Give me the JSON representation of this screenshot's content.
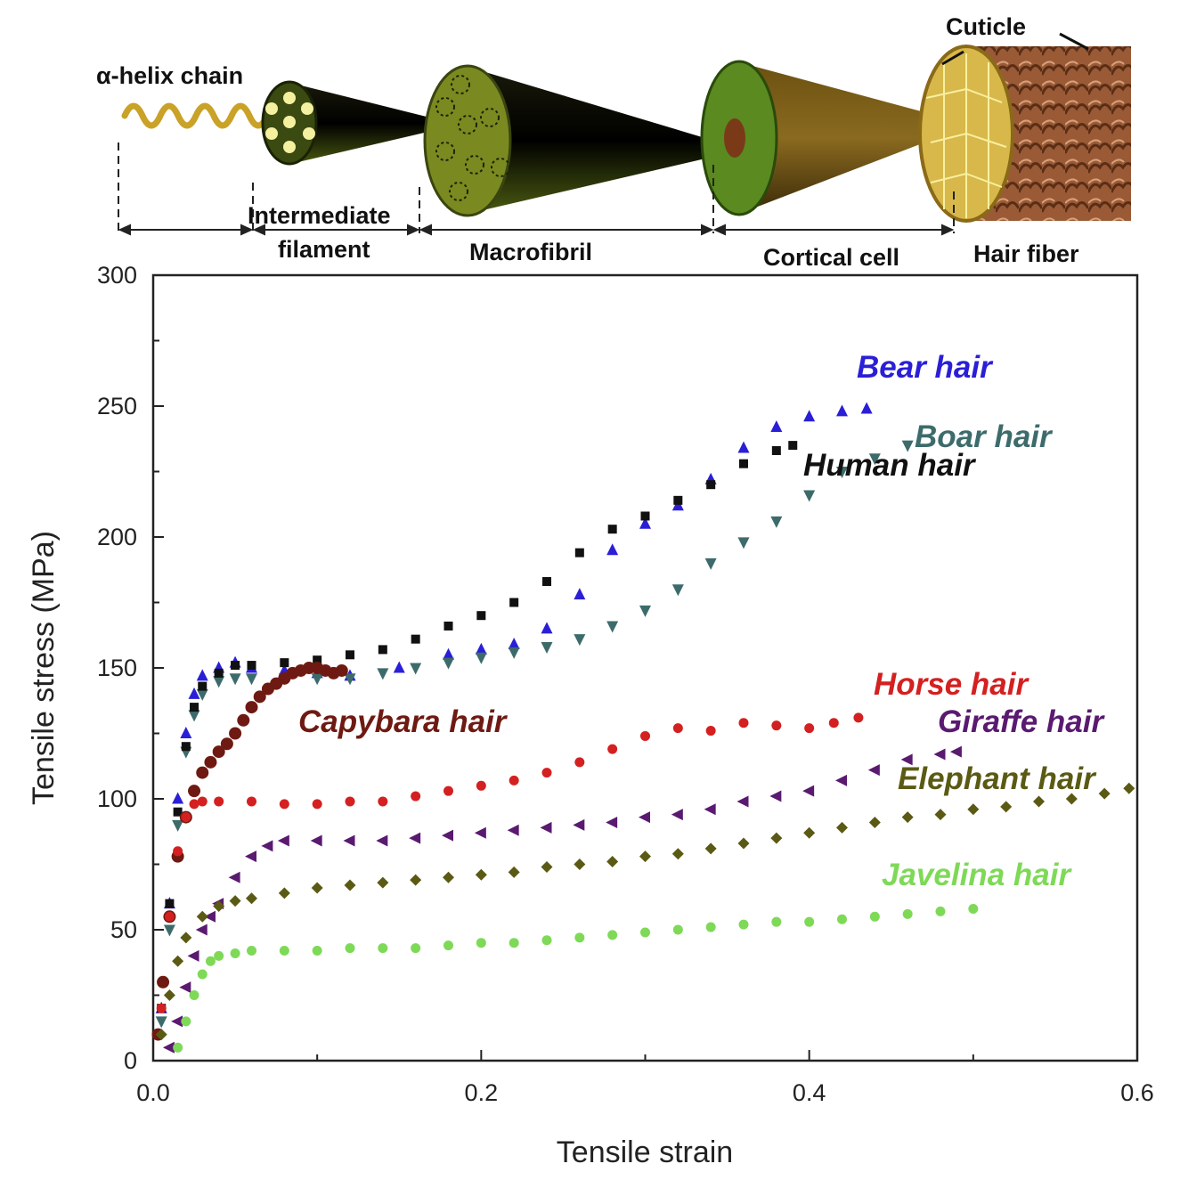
{
  "colors": {
    "bear": "#2a1fd6",
    "boar": "#3d6b6b",
    "human": "#111111",
    "capybara": "#6e1a12",
    "horse": "#d42020",
    "giraffe": "#5a1a70",
    "elephant": "#5a5a14",
    "javelina": "#7ed957"
  },
  "diagram": {
    "labels": {
      "helix": "α-helix chain",
      "intermediate_1": "Intermediate",
      "intermediate_2": "filament",
      "macrofibril": "Macrofibril",
      "cortical": "Cortical cell",
      "hair_fiber": "Hair fiber",
      "cuticle": "Cuticle"
    }
  },
  "chart_data": {
    "type": "scatter",
    "xlabel": "Tensile strain",
    "ylabel": "Tensile stress (MPa)",
    "xlim": [
      0,
      0.6
    ],
    "ylim": [
      0,
      300
    ],
    "x_ticks": [
      "0.0",
      "0.2",
      "0.4",
      "0.6"
    ],
    "y_ticks": [
      "0",
      "50",
      "100",
      "150",
      "200",
      "250",
      "300"
    ],
    "series": [
      {
        "key": "bear",
        "name": "Bear hair",
        "marker": "triangle-up",
        "points": [
          [
            0.005,
            20
          ],
          [
            0.01,
            60
          ],
          [
            0.015,
            100
          ],
          [
            0.02,
            125
          ],
          [
            0.025,
            140
          ],
          [
            0.03,
            147
          ],
          [
            0.04,
            150
          ],
          [
            0.05,
            152
          ],
          [
            0.06,
            150
          ],
          [
            0.08,
            149
          ],
          [
            0.1,
            148
          ],
          [
            0.12,
            147
          ],
          [
            0.15,
            150
          ],
          [
            0.18,
            155
          ],
          [
            0.2,
            157
          ],
          [
            0.22,
            159
          ],
          [
            0.24,
            165
          ],
          [
            0.26,
            178
          ],
          [
            0.28,
            195
          ],
          [
            0.3,
            205
          ],
          [
            0.32,
            212
          ],
          [
            0.34,
            222
          ],
          [
            0.36,
            234
          ],
          [
            0.38,
            242
          ],
          [
            0.4,
            246
          ],
          [
            0.42,
            248
          ],
          [
            0.435,
            249
          ]
        ]
      },
      {
        "key": "boar",
        "name": "Boar hair",
        "marker": "triangle-down",
        "points": [
          [
            0.005,
            15
          ],
          [
            0.01,
            50
          ],
          [
            0.015,
            90
          ],
          [
            0.02,
            118
          ],
          [
            0.025,
            132
          ],
          [
            0.03,
            140
          ],
          [
            0.04,
            145
          ],
          [
            0.05,
            146
          ],
          [
            0.06,
            146
          ],
          [
            0.08,
            146
          ],
          [
            0.1,
            146
          ],
          [
            0.12,
            146
          ],
          [
            0.14,
            148
          ],
          [
            0.16,
            150
          ],
          [
            0.18,
            152
          ],
          [
            0.2,
            154
          ],
          [
            0.22,
            156
          ],
          [
            0.24,
            158
          ],
          [
            0.26,
            161
          ],
          [
            0.28,
            166
          ],
          [
            0.3,
            172
          ],
          [
            0.32,
            180
          ],
          [
            0.34,
            190
          ],
          [
            0.36,
            198
          ],
          [
            0.38,
            206
          ],
          [
            0.4,
            216
          ],
          [
            0.42,
            225
          ],
          [
            0.44,
            230
          ],
          [
            0.46,
            235
          ]
        ]
      },
      {
        "key": "human",
        "name": "Human hair",
        "marker": "square",
        "points": [
          [
            0.005,
            20
          ],
          [
            0.01,
            60
          ],
          [
            0.015,
            95
          ],
          [
            0.02,
            120
          ],
          [
            0.025,
            135
          ],
          [
            0.03,
            143
          ],
          [
            0.04,
            148
          ],
          [
            0.05,
            151
          ],
          [
            0.06,
            151
          ],
          [
            0.08,
            152
          ],
          [
            0.1,
            153
          ],
          [
            0.12,
            155
          ],
          [
            0.14,
            157
          ],
          [
            0.16,
            161
          ],
          [
            0.18,
            166
          ],
          [
            0.2,
            170
          ],
          [
            0.22,
            175
          ],
          [
            0.24,
            183
          ],
          [
            0.26,
            194
          ],
          [
            0.28,
            203
          ],
          [
            0.3,
            208
          ],
          [
            0.32,
            214
          ],
          [
            0.34,
            220
          ],
          [
            0.36,
            228
          ],
          [
            0.38,
            233
          ],
          [
            0.39,
            235
          ]
        ]
      },
      {
        "key": "capybara",
        "name": "Capybara hair",
        "marker": "circle",
        "points": [
          [
            0.003,
            10
          ],
          [
            0.006,
            30
          ],
          [
            0.01,
            55
          ],
          [
            0.015,
            78
          ],
          [
            0.02,
            93
          ],
          [
            0.025,
            103
          ],
          [
            0.03,
            110
          ],
          [
            0.035,
            114
          ],
          [
            0.04,
            118
          ],
          [
            0.045,
            121
          ],
          [
            0.05,
            125
          ],
          [
            0.055,
            130
          ],
          [
            0.06,
            135
          ],
          [
            0.065,
            139
          ],
          [
            0.07,
            142
          ],
          [
            0.075,
            144
          ],
          [
            0.08,
            146
          ],
          [
            0.085,
            148
          ],
          [
            0.09,
            149
          ],
          [
            0.095,
            150
          ],
          [
            0.1,
            150
          ],
          [
            0.105,
            149
          ],
          [
            0.11,
            148
          ],
          [
            0.115,
            149
          ]
        ]
      },
      {
        "key": "horse",
        "name": "Horse hair",
        "marker": "circle",
        "points": [
          [
            0.005,
            20
          ],
          [
            0.01,
            55
          ],
          [
            0.015,
            80
          ],
          [
            0.02,
            93
          ],
          [
            0.025,
            98
          ],
          [
            0.03,
            99
          ],
          [
            0.04,
            99
          ],
          [
            0.06,
            99
          ],
          [
            0.08,
            98
          ],
          [
            0.1,
            98
          ],
          [
            0.12,
            99
          ],
          [
            0.14,
            99
          ],
          [
            0.16,
            101
          ],
          [
            0.18,
            103
          ],
          [
            0.2,
            105
          ],
          [
            0.22,
            107
          ],
          [
            0.24,
            110
          ],
          [
            0.26,
            114
          ],
          [
            0.28,
            119
          ],
          [
            0.3,
            124
          ],
          [
            0.32,
            127
          ],
          [
            0.34,
            126
          ],
          [
            0.36,
            129
          ],
          [
            0.38,
            128
          ],
          [
            0.4,
            127
          ],
          [
            0.415,
            129
          ],
          [
            0.43,
            131
          ]
        ]
      },
      {
        "key": "giraffe",
        "name": "Giraffe hair",
        "marker": "triangle-left",
        "points": [
          [
            0.01,
            5
          ],
          [
            0.015,
            15
          ],
          [
            0.02,
            28
          ],
          [
            0.025,
            40
          ],
          [
            0.03,
            50
          ],
          [
            0.035,
            55
          ],
          [
            0.04,
            60
          ],
          [
            0.05,
            70
          ],
          [
            0.06,
            78
          ],
          [
            0.07,
            82
          ],
          [
            0.08,
            84
          ],
          [
            0.1,
            84
          ],
          [
            0.12,
            84
          ],
          [
            0.14,
            84
          ],
          [
            0.16,
            85
          ],
          [
            0.18,
            86
          ],
          [
            0.2,
            87
          ],
          [
            0.22,
            88
          ],
          [
            0.24,
            89
          ],
          [
            0.26,
            90
          ],
          [
            0.28,
            91
          ],
          [
            0.3,
            93
          ],
          [
            0.32,
            94
          ],
          [
            0.34,
            96
          ],
          [
            0.36,
            99
          ],
          [
            0.38,
            101
          ],
          [
            0.4,
            103
          ],
          [
            0.42,
            107
          ],
          [
            0.44,
            111
          ],
          [
            0.46,
            115
          ],
          [
            0.48,
            117
          ],
          [
            0.49,
            118
          ]
        ]
      },
      {
        "key": "elephant",
        "name": "Elephant hair",
        "marker": "diamond",
        "points": [
          [
            0.005,
            10
          ],
          [
            0.01,
            25
          ],
          [
            0.015,
            38
          ],
          [
            0.02,
            47
          ],
          [
            0.03,
            55
          ],
          [
            0.04,
            59
          ],
          [
            0.05,
            61
          ],
          [
            0.06,
            62
          ],
          [
            0.08,
            64
          ],
          [
            0.1,
            66
          ],
          [
            0.12,
            67
          ],
          [
            0.14,
            68
          ],
          [
            0.16,
            69
          ],
          [
            0.18,
            70
          ],
          [
            0.2,
            71
          ],
          [
            0.22,
            72
          ],
          [
            0.24,
            74
          ],
          [
            0.26,
            75
          ],
          [
            0.28,
            76
          ],
          [
            0.3,
            78
          ],
          [
            0.32,
            79
          ],
          [
            0.34,
            81
          ],
          [
            0.36,
            83
          ],
          [
            0.38,
            85
          ],
          [
            0.4,
            87
          ],
          [
            0.42,
            89
          ],
          [
            0.44,
            91
          ],
          [
            0.46,
            93
          ],
          [
            0.48,
            94
          ],
          [
            0.5,
            96
          ],
          [
            0.52,
            97
          ],
          [
            0.54,
            99
          ],
          [
            0.56,
            100
          ],
          [
            0.58,
            102
          ],
          [
            0.595,
            104
          ]
        ]
      },
      {
        "key": "javelina",
        "name": "Javelina hair",
        "marker": "circle",
        "points": [
          [
            0.015,
            5
          ],
          [
            0.02,
            15
          ],
          [
            0.025,
            25
          ],
          [
            0.03,
            33
          ],
          [
            0.035,
            38
          ],
          [
            0.04,
            40
          ],
          [
            0.05,
            41
          ],
          [
            0.06,
            42
          ],
          [
            0.08,
            42
          ],
          [
            0.1,
            42
          ],
          [
            0.12,
            43
          ],
          [
            0.14,
            43
          ],
          [
            0.16,
            43
          ],
          [
            0.18,
            44
          ],
          [
            0.2,
            45
          ],
          [
            0.22,
            45
          ],
          [
            0.24,
            46
          ],
          [
            0.26,
            47
          ],
          [
            0.28,
            48
          ],
          [
            0.3,
            49
          ],
          [
            0.32,
            50
          ],
          [
            0.34,
            51
          ],
          [
            0.36,
            52
          ],
          [
            0.38,
            53
          ],
          [
            0.4,
            53
          ],
          [
            0.42,
            54
          ],
          [
            0.44,
            55
          ],
          [
            0.46,
            56
          ],
          [
            0.48,
            57
          ],
          [
            0.5,
            58
          ]
        ]
      }
    ]
  }
}
